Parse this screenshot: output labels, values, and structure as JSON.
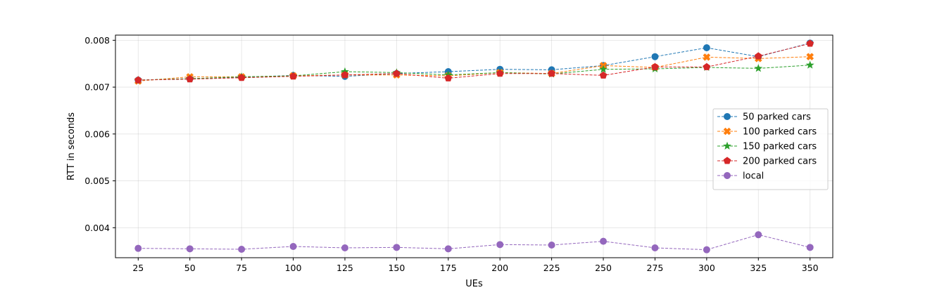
{
  "chart_data": {
    "type": "line",
    "title": "",
    "xlabel": "UEs",
    "ylabel": "RTT in seconds",
    "x": [
      25,
      50,
      75,
      100,
      125,
      150,
      175,
      200,
      225,
      250,
      275,
      300,
      325,
      350
    ],
    "x_tick_labels": [
      "25",
      "50",
      "75",
      "100",
      "125",
      "150",
      "175",
      "200",
      "225",
      "250",
      "275",
      "300",
      "325",
      "350"
    ],
    "y_ticks": [
      0.004,
      0.005,
      0.006,
      0.007,
      0.008
    ],
    "y_tick_labels": [
      "0.004",
      "0.005",
      "0.006",
      "0.007",
      "0.008"
    ],
    "xlim": [
      14,
      361
    ],
    "ylim": [
      0.00336,
      0.00811
    ],
    "grid": true,
    "legend_position": "center-right",
    "series": [
      {
        "name": "50 parked cars",
        "color": "#1f77b4",
        "marker": "circle",
        "values": [
          0.00715,
          0.00718,
          0.00721,
          0.00725,
          0.00723,
          0.00729,
          0.00733,
          0.00738,
          0.00737,
          0.00746,
          0.00765,
          0.00784,
          0.00765,
          0.00794
        ]
      },
      {
        "name": "100 parked cars",
        "color": "#ff7f0e",
        "marker": "x-filled",
        "values": [
          0.00713,
          0.00722,
          0.00722,
          0.00724,
          0.00726,
          0.00726,
          0.00724,
          0.00731,
          0.00729,
          0.00746,
          0.00742,
          0.00764,
          0.00761,
          0.00765
        ]
      },
      {
        "name": "150 parked cars",
        "color": "#2ca02c",
        "marker": "star",
        "values": [
          0.00715,
          0.00718,
          0.00722,
          0.00724,
          0.00733,
          0.00731,
          0.00726,
          0.00731,
          0.00728,
          0.00738,
          0.00739,
          0.00742,
          0.0074,
          0.00747
        ]
      },
      {
        "name": "200 parked cars",
        "color": "#d62728",
        "marker": "pentagon",
        "values": [
          0.00715,
          0.00717,
          0.0072,
          0.00723,
          0.00726,
          0.00729,
          0.00719,
          0.00729,
          0.00729,
          0.00725,
          0.00743,
          0.00743,
          0.00766,
          0.00793
        ]
      },
      {
        "name": "local",
        "color": "#9467bd",
        "marker": "circle",
        "values": [
          0.00356,
          0.00355,
          0.00354,
          0.0036,
          0.00357,
          0.00358,
          0.00355,
          0.00364,
          0.00363,
          0.00371,
          0.00357,
          0.00353,
          0.00385,
          0.00358
        ]
      }
    ]
  }
}
